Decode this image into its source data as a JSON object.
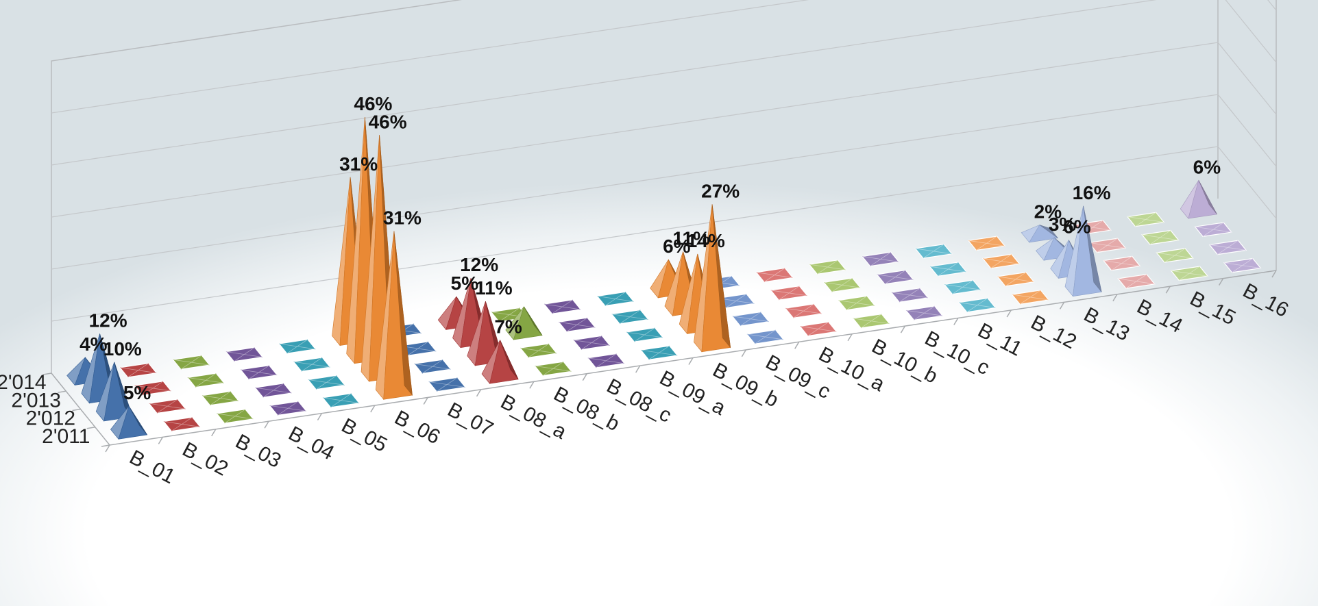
{
  "chart_data": {
    "type": "3d-pyramid-column",
    "categories": [
      "B_01",
      "B_02",
      "B_03",
      "B_04",
      "B_05",
      "B_06",
      "B_07",
      "B_08_a",
      "B_08_b",
      "B_08_c",
      "B_09_a",
      "B_09_b",
      "B_09_c",
      "B_10_a",
      "B_10_b",
      "B_10_c",
      "B_11",
      "B_12",
      "B_13",
      "B_14",
      "B_15",
      "B_16"
    ],
    "series": [
      {
        "name": "2'011",
        "values": [
          5,
          0,
          0,
          0,
          0,
          31,
          0,
          7,
          0,
          0,
          0,
          27,
          0,
          0,
          0,
          0,
          0,
          0,
          16,
          0,
          0,
          0
        ]
      },
      {
        "name": "2'012",
        "values": [
          10,
          0,
          0,
          0,
          0,
          46,
          0,
          11,
          0,
          0,
          0,
          14,
          0,
          0,
          0,
          0,
          0,
          0,
          6,
          0,
          0,
          0
        ]
      },
      {
        "name": "2'013",
        "values": [
          12,
          0,
          0,
          0,
          0,
          46,
          0,
          12,
          5,
          0,
          0,
          11,
          0,
          0,
          0,
          0,
          0,
          0,
          3,
          0,
          0,
          0
        ]
      },
      {
        "name": "2'014",
        "values": [
          4,
          0,
          0,
          0,
          0,
          31,
          0,
          5,
          0,
          0,
          0,
          6,
          0,
          0,
          0,
          0,
          0,
          0,
          2,
          0,
          0,
          6
        ]
      }
    ],
    "data_labels": [
      {
        "category": "B_01",
        "series": "2'011",
        "text": "5%"
      },
      {
        "category": "B_01",
        "series": "2'012",
        "text": "10%"
      },
      {
        "category": "B_01",
        "series": "2'013",
        "text": "12%"
      },
      {
        "category": "B_01",
        "series": "2'014",
        "text": "4%"
      },
      {
        "category": "B_06",
        "series": "2'011",
        "text": "31%"
      },
      {
        "category": "B_06",
        "series": "2'012",
        "text": "46%"
      },
      {
        "category": "B_06",
        "series": "2'013",
        "text": "46%"
      },
      {
        "category": "B_06",
        "series": "2'014",
        "text": "31%"
      },
      {
        "category": "B_08_a",
        "series": "2'011",
        "text": "7%"
      },
      {
        "category": "B_08_a",
        "series": "2'012",
        "text": "11%"
      },
      {
        "category": "B_08_a",
        "series": "2'013",
        "text": "12%"
      },
      {
        "category": "B_08_a",
        "series": "2'014",
        "text": "5%"
      },
      {
        "category": "B_09_b",
        "series": "2'011",
        "text": "27%"
      },
      {
        "category": "B_09_b",
        "series": "2'012",
        "text": "14%"
      },
      {
        "category": "B_09_b",
        "series": "2'013",
        "text": "11%"
      },
      {
        "category": "B_09_b",
        "series": "2'014",
        "text": "6%"
      },
      {
        "category": "B_13",
        "series": "2'011",
        "text": "16%"
      },
      {
        "category": "B_13",
        "series": "2'012",
        "text": "6%"
      },
      {
        "category": "B_13",
        "series": "2'013",
        "text": "3%"
      },
      {
        "category": "B_13",
        "series": "2'014",
        "text": "2%"
      },
      {
        "category": "B_16",
        "series": "2'014",
        "text": "6%"
      }
    ],
    "category_colors": [
      "#3b6aa6",
      "#b23a3a",
      "#7fa13a",
      "#6a4c93",
      "#2f9ab0",
      "#e8832a",
      "#3b6aa6",
      "#b23a3a",
      "#7fa13a",
      "#6a4c93",
      "#2f9ab0",
      "#e8832a",
      "#6d8fc9",
      "#d9706e",
      "#a5c46a",
      "#8e7bb4",
      "#5cb7cc",
      "#f2a05a",
      "#9db3df",
      "#e4a6a6",
      "#b9d48e",
      "#b8a9d3"
    ],
    "ylim": [
      0,
      60
    ],
    "grid": true,
    "legend": "none",
    "title": "",
    "xlabel": "",
    "ylabel": ""
  }
}
